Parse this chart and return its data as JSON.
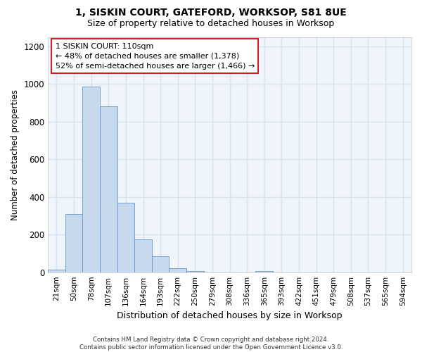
{
  "title": "1, SISKIN COURT, GATEFORD, WORKSOP, S81 8UE",
  "subtitle": "Size of property relative to detached houses in Worksop",
  "xlabel": "Distribution of detached houses by size in Worksop",
  "ylabel": "Number of detached properties",
  "bar_fill_color": "#c8d9ee",
  "bar_edge_color": "#6699cc",
  "categories": [
    "21sqm",
    "50sqm",
    "78sqm",
    "107sqm",
    "136sqm",
    "164sqm",
    "193sqm",
    "222sqm",
    "250sqm",
    "279sqm",
    "308sqm",
    "336sqm",
    "365sqm",
    "393sqm",
    "422sqm",
    "451sqm",
    "479sqm",
    "508sqm",
    "537sqm",
    "565sqm",
    "594sqm"
  ],
  "values": [
    13,
    310,
    985,
    880,
    370,
    175,
    85,
    22,
    8,
    0,
    0,
    0,
    8,
    0,
    0,
    0,
    0,
    0,
    0,
    0,
    0
  ],
  "ylim_max": 1250,
  "yticks": [
    0,
    200,
    400,
    600,
    800,
    1000,
    1200
  ],
  "annotation_line1": "1 SISKIN COURT: 110sqm",
  "annotation_line2": "← 48% of detached houses are smaller (1,378)",
  "annotation_line3": "52% of semi-detached houses are larger (1,466) →",
  "annotation_box_facecolor": "#ffffff",
  "annotation_box_edgecolor": "#cc2222",
  "background_color": "#ffffff",
  "plot_bg_color": "#f0f4fb",
  "grid_color": "#d8e4f0",
  "footer_line1": "Contains HM Land Registry data © Crown copyright and database right 2024.",
  "footer_line2": "Contains public sector information licensed under the Open Government Licence v3.0."
}
